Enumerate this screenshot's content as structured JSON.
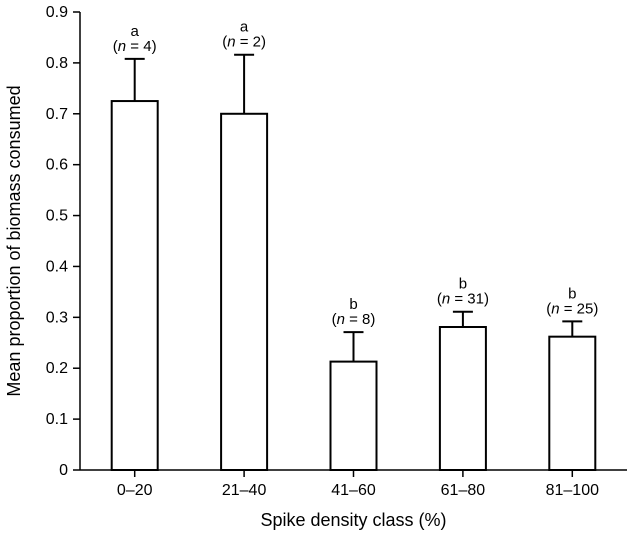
{
  "chart_data": {
    "type": "bar",
    "categories": [
      "0–20",
      "21–40",
      "41–60",
      "61–80",
      "81–100"
    ],
    "values": [
      0.725,
      0.7,
      0.213,
      0.281,
      0.262
    ],
    "error_upper": [
      0.808,
      0.816,
      0.271,
      0.311,
      0.292
    ],
    "letters": [
      "a",
      "a",
      "b",
      "b",
      "b"
    ],
    "n_labels": [
      {
        "prefix": "(",
        "n": "n",
        "rest": " = 4)"
      },
      {
        "prefix": "(",
        "n": "n",
        "rest": " = 2)"
      },
      {
        "prefix": "(",
        "n": "n",
        "rest": " = 8)"
      },
      {
        "prefix": "(",
        "n": "n",
        "rest": " = 31)"
      },
      {
        "prefix": "(",
        "n": "n",
        "rest": " = 25)"
      }
    ],
    "xlabel": "Spike density class (%)",
    "ylabel": "Mean proportion of biomass consumed",
    "ylim": [
      0,
      0.9
    ],
    "yticks": [
      "0",
      "0.1",
      "0.2",
      "0.3",
      "0.4",
      "0.5",
      "0.6",
      "0.7",
      "0.8",
      "0.9"
    ],
    "grid": false,
    "colors": {
      "bar_fill": "#ffffff",
      "stroke": "#000000"
    }
  }
}
